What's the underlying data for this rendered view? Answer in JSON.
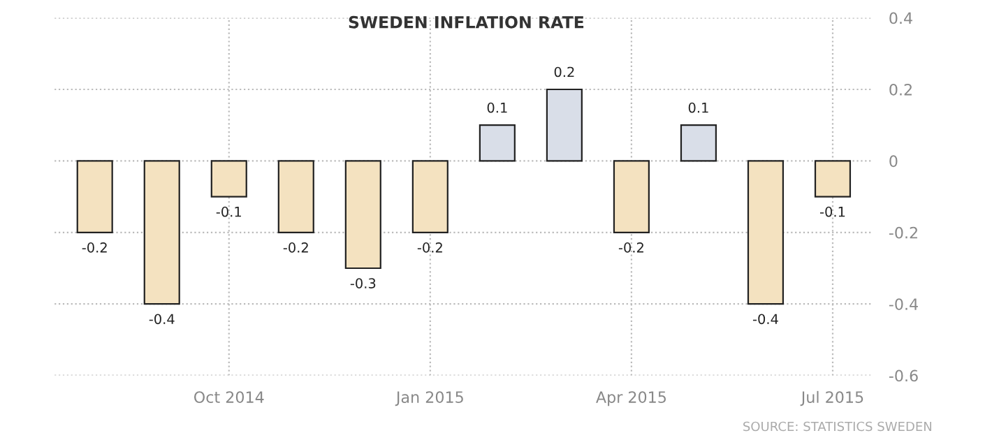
{
  "chart_data": {
    "type": "bar",
    "title": "SWEDEN INFLATION RATE",
    "categories": [
      null,
      null,
      "Oct 2014",
      null,
      null,
      "Jan 2015",
      null,
      null,
      "Apr 2015",
      null,
      null,
      "Jul 2015"
    ],
    "values": [
      -0.2,
      -0.4,
      -0.1,
      -0.2,
      -0.3,
      -0.2,
      0.1,
      0.2,
      -0.2,
      0.1,
      -0.4,
      -0.1
    ],
    "colors": [
      "#f4e2c0",
      "#f4e2c0",
      "#f4e2c0",
      "#f4e2c0",
      "#f4e2c0",
      "#f4e2c0",
      "#d9dee8",
      "#d9dee8",
      "#f4e2c0",
      "#d9dee8",
      "#f4e2c0",
      "#f4e2c0"
    ],
    "ylim": [
      -0.6,
      0.4
    ],
    "yticks": [
      -0.6,
      -0.4,
      -0.2,
      0,
      0.2,
      0.4
    ],
    "grid": true,
    "data_labels": true,
    "annotations": [
      "SOURCE: STATISTICS SWEDEN"
    ]
  }
}
